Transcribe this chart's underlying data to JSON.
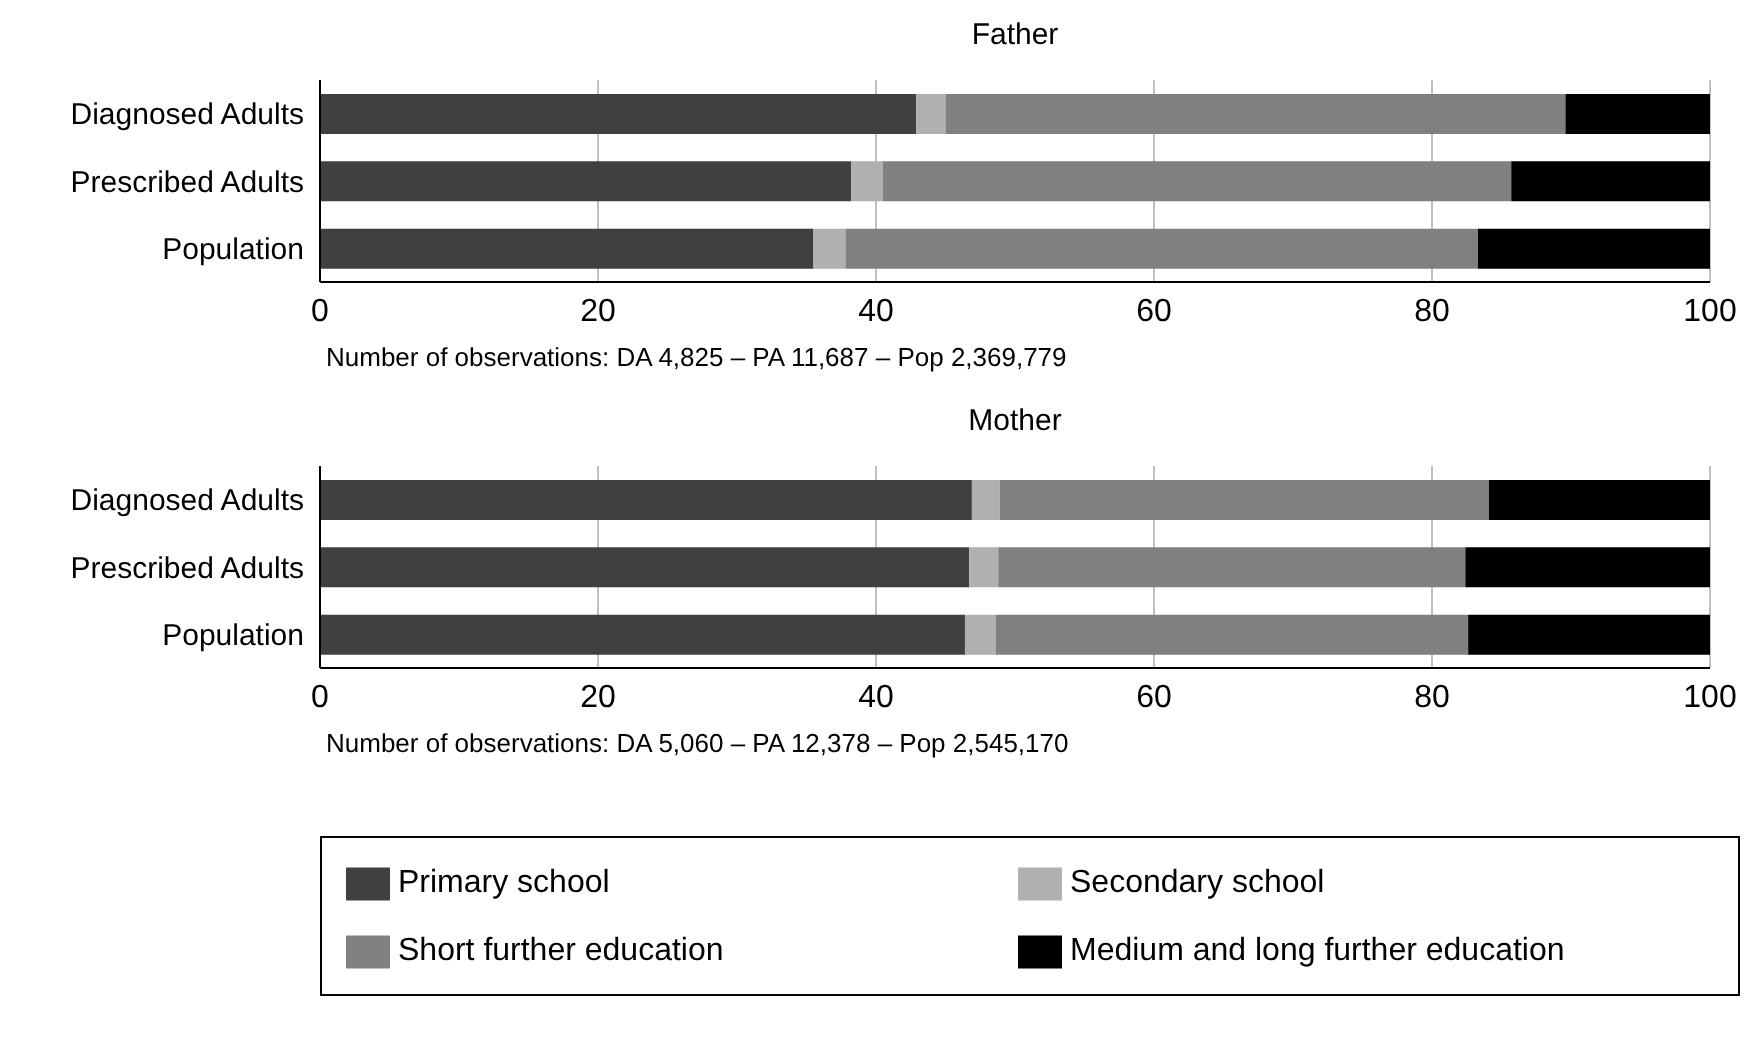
{
  "chart_data": [
    {
      "type": "bar",
      "orientation": "horizontal",
      "stacked": true,
      "title": "Father",
      "categories": [
        "Diagnosed Adults",
        "Prescribed Adults",
        "Population"
      ],
      "series": [
        {
          "color": "#404040",
          "values": [
            42.9,
            38.2,
            35.5
          ]
        },
        {
          "color": "#b0b0b0",
          "values": [
            2.1,
            2.3,
            2.3
          ]
        },
        {
          "color": "#808080",
          "values": [
            44.6,
            45.2,
            45.5
          ]
        },
        {
          "color": "#000000",
          "values": [
            10.4,
            14.3,
            16.7
          ]
        }
      ],
      "xlim": [
        0,
        100
      ],
      "xticks": [
        0,
        20,
        40,
        60,
        80,
        100
      ],
      "grid": "x",
      "legend": false,
      "annotations": [
        "Number of observations: DA 4,825 – PA 11,687 – Pop 2,369,779"
      ]
    },
    {
      "type": "bar",
      "orientation": "horizontal",
      "stacked": true,
      "title": "Mother",
      "categories": [
        "Diagnosed Adults",
        "Prescribed Adults",
        "Population"
      ],
      "series": [
        {
          "name": "Primary school",
          "color": "#404040",
          "values": [
            46.9,
            46.7,
            46.4
          ]
        },
        {
          "name": "Secondary school",
          "color": "#b0b0b0",
          "values": [
            2.0,
            2.1,
            2.2
          ]
        },
        {
          "name": "Short further education",
          "color": "#808080",
          "values": [
            35.2,
            33.6,
            34.0
          ]
        },
        {
          "name": "Medium and long further education",
          "color": "#000000",
          "values": [
            15.9,
            17.6,
            17.4
          ]
        }
      ],
      "xlim": [
        0,
        100
      ],
      "xticks": [
        0,
        20,
        40,
        60,
        80,
        100
      ],
      "grid": "x",
      "legend": "bottom",
      "annotations": [
        "Number of observations: DA 5,060 – PA 12,378 – Pop 2,545,170"
      ]
    }
  ]
}
